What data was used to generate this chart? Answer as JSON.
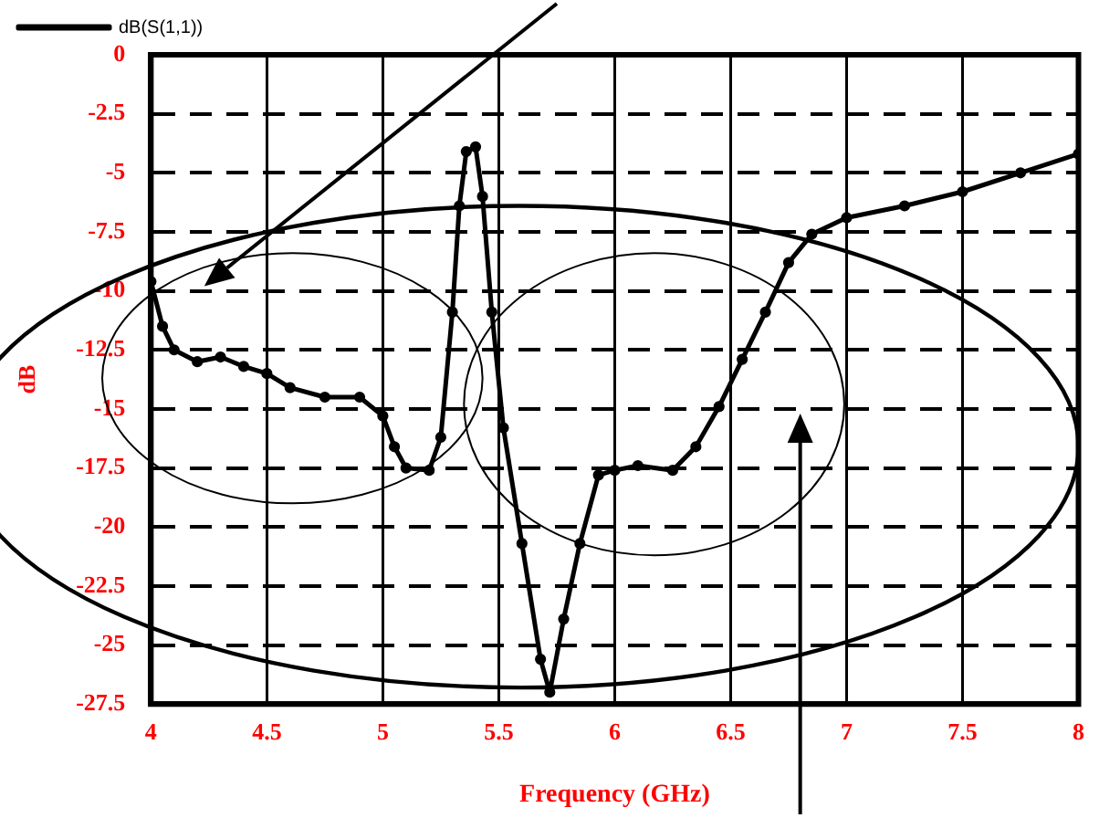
{
  "chart_data": {
    "type": "line",
    "xlabel": "Frequency (GHz)",
    "ylabel": "dB",
    "xlim": [
      4,
      8
    ],
    "xticks": [
      4,
      4.5,
      5,
      5.5,
      6,
      6.5,
      7,
      7.5,
      8
    ],
    "ylim": [
      -27.5,
      0
    ],
    "yticks": [
      0,
      -2.5,
      -5,
      -7.5,
      -10,
      -12.5,
      -15,
      -17.5,
      -20,
      -22.5,
      -25,
      -27.5
    ],
    "grid": true,
    "legend": "top left",
    "marker": "circle",
    "line_style": "solid",
    "series": [
      {
        "name": "dB(S(1,1))",
        "color": "#000000",
        "x": [
          4,
          4.05,
          4.1,
          4.2,
          4.3,
          4.4,
          4.5,
          4.6,
          4.75,
          4.9,
          5,
          5.05,
          5.1,
          5.2,
          5.25,
          5.3,
          5.33,
          5.36,
          5.4,
          5.43,
          5.47,
          5.52,
          5.6,
          5.68,
          5.72,
          5.78,
          5.85,
          5.93,
          6,
          6.1,
          6.25,
          6.35,
          6.45,
          6.55,
          6.65,
          6.75,
          6.85,
          7,
          7.25,
          7.5,
          7.75,
          8
        ],
        "values": [
          -9.6,
          -11.5,
          -12.5,
          -13,
          -12.8,
          -13.2,
          -13.5,
          -14.1,
          -14.5,
          -14.5,
          -15.3,
          -16.6,
          -17.5,
          -17.6,
          -16.2,
          -10.9,
          -6.4,
          -4.1,
          -3.9,
          -6,
          -10.9,
          -15.8,
          -20.7,
          -25.6,
          -27,
          -23.9,
          -20.7,
          -17.8,
          -17.6,
          -17.4,
          -17.6,
          -16.6,
          -14.9,
          -12.9,
          -10.9,
          -8.8,
          -7.6,
          -6.9,
          -6.4,
          -5.8,
          -5,
          -4.2
        ]
      }
    ]
  }
}
